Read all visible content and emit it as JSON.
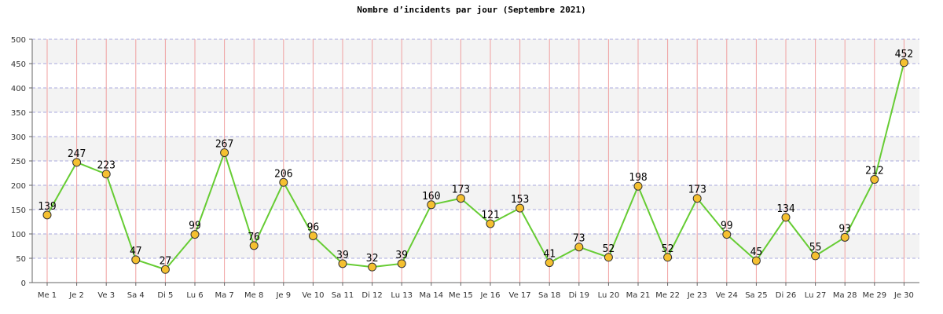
{
  "chart_data": {
    "type": "line",
    "title": "Nombre d’incidents par jour (Septembre 2021)",
    "xlabel": "",
    "ylabel": "",
    "ylim": [
      0,
      500
    ],
    "yticks": [
      0,
      50,
      100,
      150,
      200,
      250,
      300,
      350,
      400,
      450,
      500
    ],
    "grid": true,
    "legend": "none",
    "categories": [
      "Me 1",
      "Je 2",
      "Ve 3",
      "Sa 4",
      "Di 5",
      "Lu 6",
      "Ma 7",
      "Me 8",
      "Je 9",
      "Ve 10",
      "Sa 11",
      "Di 12",
      "Lu 13",
      "Ma 14",
      "Me 15",
      "Je 16",
      "Ve 17",
      "Sa 18",
      "Di 19",
      "Lu 20",
      "Ma 21",
      "Me 22",
      "Je 23",
      "Ve 24",
      "Sa 25",
      "Di 26",
      "Lu 27",
      "Ma 28",
      "Me 29",
      "Je 30"
    ],
    "series": [
      {
        "values": [
          139,
          247,
          223,
          47,
          27,
          99,
          267,
          76,
          206,
          96,
          39,
          32,
          39,
          160,
          173,
          121,
          153,
          41,
          73,
          52,
          198,
          52,
          173,
          99,
          45,
          134,
          55,
          93,
          212,
          452
        ],
        "line_color": "#66cc33",
        "marker_color": "#f5c030"
      }
    ],
    "colors": {
      "band_light": "#f3f3f3",
      "vertical_grid": "#f0a0a0",
      "horizontal_grid": "#aaaadd"
    }
  }
}
